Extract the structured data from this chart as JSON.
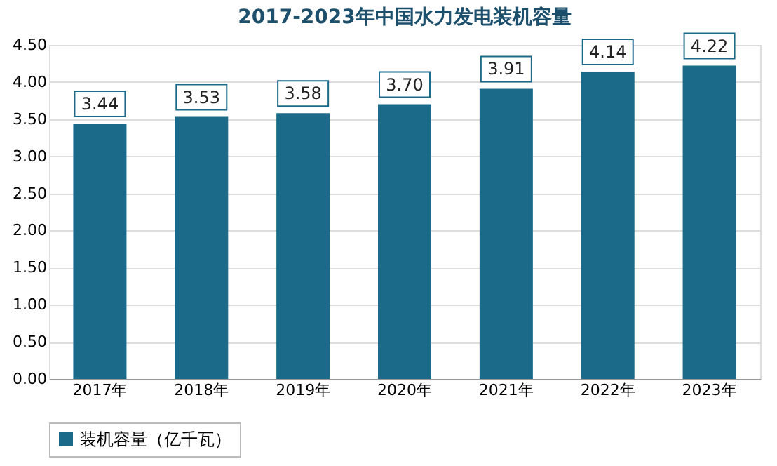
{
  "chart_data": {
    "type": "bar",
    "title": "2017-2023年中国水力发电装机容量",
    "categories": [
      "2017年",
      "2018年",
      "2019年",
      "2020年",
      "2021年",
      "2022年",
      "2023年"
    ],
    "series": [
      {
        "name": "装机容量（亿千瓦）",
        "color": "#1b6a8a",
        "values": [
          3.44,
          3.53,
          3.58,
          3.7,
          3.91,
          4.14,
          4.22
        ]
      }
    ],
    "ylim": [
      0,
      4.5
    ],
    "yticks": [
      {
        "value": 0,
        "label": "0.00"
      },
      {
        "value": 0.5,
        "label": "0.50"
      },
      {
        "value": 1,
        "label": "1.00"
      },
      {
        "value": 1.5,
        "label": "1.50"
      },
      {
        "value": 2,
        "label": "2.00"
      },
      {
        "value": 2.5,
        "label": "2.50"
      },
      {
        "value": 3,
        "label": "3.00"
      },
      {
        "value": 3.5,
        "label": "3.50"
      },
      {
        "value": 4,
        "label": "4.00"
      },
      {
        "value": 4.5,
        "label": "4.50"
      }
    ],
    "value_labels": [
      "3.44",
      "3.53",
      "3.58",
      "3.70",
      "3.91",
      "4.14",
      "4.22"
    ],
    "grid": "y",
    "legend": "bottom"
  }
}
